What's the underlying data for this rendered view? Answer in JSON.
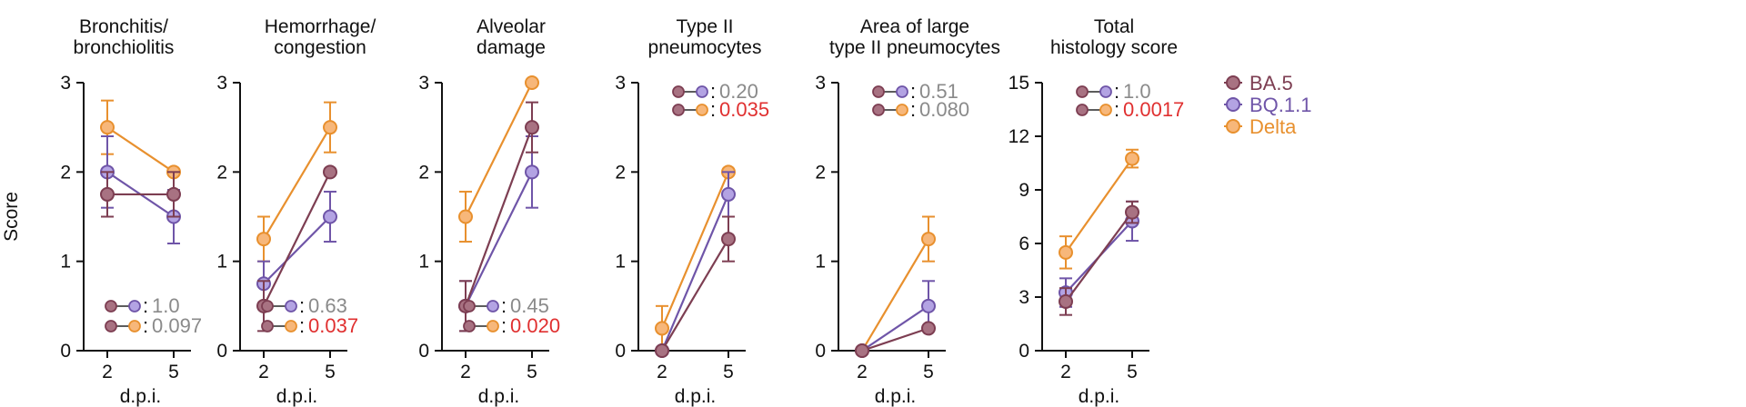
{
  "colors": {
    "BA.5": "#7d3e52",
    "BQ.1.1": "#6f55a8",
    "Delta": "#e8902e",
    "BA.5_fill": "#a87282",
    "BQ.1.1_fill": "#b3a3e3",
    "Delta_fill": "#f7b77a",
    "p_sig": "#e03030",
    "p_ns": "#8a8a8a"
  },
  "legend": {
    "items": [
      {
        "key": "BA.5",
        "label": "BA.5"
      },
      {
        "key": "BQ.1.1",
        "label": "BQ.1.1"
      },
      {
        "key": "Delta",
        "label": "Delta"
      }
    ],
    "placement": "right"
  },
  "chart_data": [
    {
      "type": "line",
      "title": [
        "Bronchitis/",
        "bronchiolitis"
      ],
      "ylabel": "Score",
      "xlabel": "d.p.i.",
      "x": [
        2,
        5
      ],
      "ylim": [
        0,
        3
      ],
      "yticks": [
        0,
        1,
        2,
        3
      ],
      "series": [
        {
          "name": "BA.5",
          "values": [
            1.75,
            1.75
          ],
          "err": [
            0.25,
            0.25
          ]
        },
        {
          "name": "BQ.1.1",
          "values": [
            2.0,
            1.5
          ],
          "err": [
            0.4,
            0.3
          ]
        },
        {
          "name": "Delta",
          "values": [
            2.5,
            2.0
          ],
          "err": [
            0.3,
            0.0
          ]
        }
      ],
      "comparisons": [
        {
          "a": "BA.5",
          "b": "BQ.1.1",
          "p": "1.0",
          "sig": false
        },
        {
          "a": "BA.5",
          "b": "Delta",
          "p": "0.097",
          "sig": false
        }
      ],
      "comp_pos": "bottom"
    },
    {
      "type": "line",
      "title": [
        "Hemorrhage/",
        "congestion"
      ],
      "xlabel": "d.p.i.",
      "x": [
        2,
        5
      ],
      "ylim": [
        0,
        3
      ],
      "yticks": [
        0,
        1,
        2,
        3
      ],
      "series": [
        {
          "name": "BA.5",
          "values": [
            0.5,
            2.0
          ],
          "err": [
            0.28,
            0.0
          ]
        },
        {
          "name": "BQ.1.1",
          "values": [
            0.75,
            1.5
          ],
          "err": [
            0.25,
            0.28
          ]
        },
        {
          "name": "Delta",
          "values": [
            1.25,
            2.5
          ],
          "err": [
            0.25,
            0.28
          ]
        }
      ],
      "comparisons": [
        {
          "a": "BA.5",
          "b": "BQ.1.1",
          "p": "0.63",
          "sig": false
        },
        {
          "a": "BA.5",
          "b": "Delta",
          "p": "0.037",
          "sig": true
        }
      ],
      "comp_pos": "bottom"
    },
    {
      "type": "line",
      "title": [
        "Alveolar",
        "damage"
      ],
      "xlabel": "d.p.i.",
      "x": [
        2,
        5
      ],
      "ylim": [
        0,
        3
      ],
      "yticks": [
        0,
        1,
        2,
        3
      ],
      "series": [
        {
          "name": "BA.5",
          "values": [
            0.5,
            2.5
          ],
          "err": [
            0.28,
            0.28
          ]
        },
        {
          "name": "BQ.1.1",
          "values": [
            0.5,
            2.0
          ],
          "err": [
            0.28,
            0.4
          ]
        },
        {
          "name": "Delta",
          "values": [
            1.5,
            3.0
          ],
          "err": [
            0.28,
            0.0
          ]
        }
      ],
      "comparisons": [
        {
          "a": "BA.5",
          "b": "BQ.1.1",
          "p": "0.45",
          "sig": false
        },
        {
          "a": "BA.5",
          "b": "Delta",
          "p": "0.020",
          "sig": true
        }
      ],
      "comp_pos": "bottom"
    },
    {
      "type": "line",
      "title": [
        "Type II",
        "pneumocytes"
      ],
      "xlabel": "d.p.i.",
      "x": [
        2,
        5
      ],
      "ylim": [
        0,
        3
      ],
      "yticks": [
        0,
        1,
        2,
        3
      ],
      "series": [
        {
          "name": "BA.5",
          "values": [
            0.0,
            1.25
          ],
          "err": [
            0.0,
            0.25
          ]
        },
        {
          "name": "BQ.1.1",
          "values": [
            0.0,
            1.75
          ],
          "err": [
            0.0,
            0.25
          ]
        },
        {
          "name": "Delta",
          "values": [
            0.25,
            2.0
          ],
          "err": [
            0.25,
            0.0
          ]
        }
      ],
      "comparisons": [
        {
          "a": "BA.5",
          "b": "BQ.1.1",
          "p": "0.20",
          "sig": false
        },
        {
          "a": "BA.5",
          "b": "Delta",
          "p": "0.035",
          "sig": true
        }
      ],
      "comp_pos": "top"
    },
    {
      "type": "line",
      "title": [
        "Area of large",
        "type II pneumocytes"
      ],
      "xlabel": "d.p.i.",
      "x": [
        2,
        5
      ],
      "ylim": [
        0,
        3
      ],
      "yticks": [
        0,
        1,
        2,
        3
      ],
      "series": [
        {
          "name": "BA.5",
          "values": [
            0.0,
            0.25
          ],
          "err": [
            0.0,
            0.0
          ]
        },
        {
          "name": "BQ.1.1",
          "values": [
            0.0,
            0.5
          ],
          "err": [
            0.0,
            0.28
          ]
        },
        {
          "name": "Delta",
          "values": [
            0.0,
            1.25
          ],
          "err": [
            0.0,
            0.25
          ]
        }
      ],
      "comparisons": [
        {
          "a": "BA.5",
          "b": "BQ.1.1",
          "p": "0.51",
          "sig": false
        },
        {
          "a": "BA.5",
          "b": "Delta",
          "p": "0.080",
          "sig": false
        }
      ],
      "comp_pos": "top"
    },
    {
      "type": "line",
      "title": [
        "Total",
        "histology score"
      ],
      "xlabel": "d.p.i.",
      "x": [
        2,
        5
      ],
      "ylim": [
        0,
        15
      ],
      "yticks": [
        0,
        3,
        6,
        9,
        12,
        15
      ],
      "series": [
        {
          "name": "BA.5",
          "values": [
            2.75,
            7.75
          ],
          "err": [
            0.75,
            0.6
          ]
        },
        {
          "name": "BQ.1.1",
          "values": [
            3.25,
            7.25
          ],
          "err": [
            0.8,
            1.1
          ]
        },
        {
          "name": "Delta",
          "values": [
            5.5,
            10.75
          ],
          "err": [
            0.9,
            0.5
          ]
        }
      ],
      "comparisons": [
        {
          "a": "BA.5",
          "b": "BQ.1.1",
          "p": "1.0",
          "sig": false
        },
        {
          "a": "BA.5",
          "b": "Delta",
          "p": "0.0017",
          "sig": true
        }
      ],
      "comp_pos": "top"
    }
  ]
}
